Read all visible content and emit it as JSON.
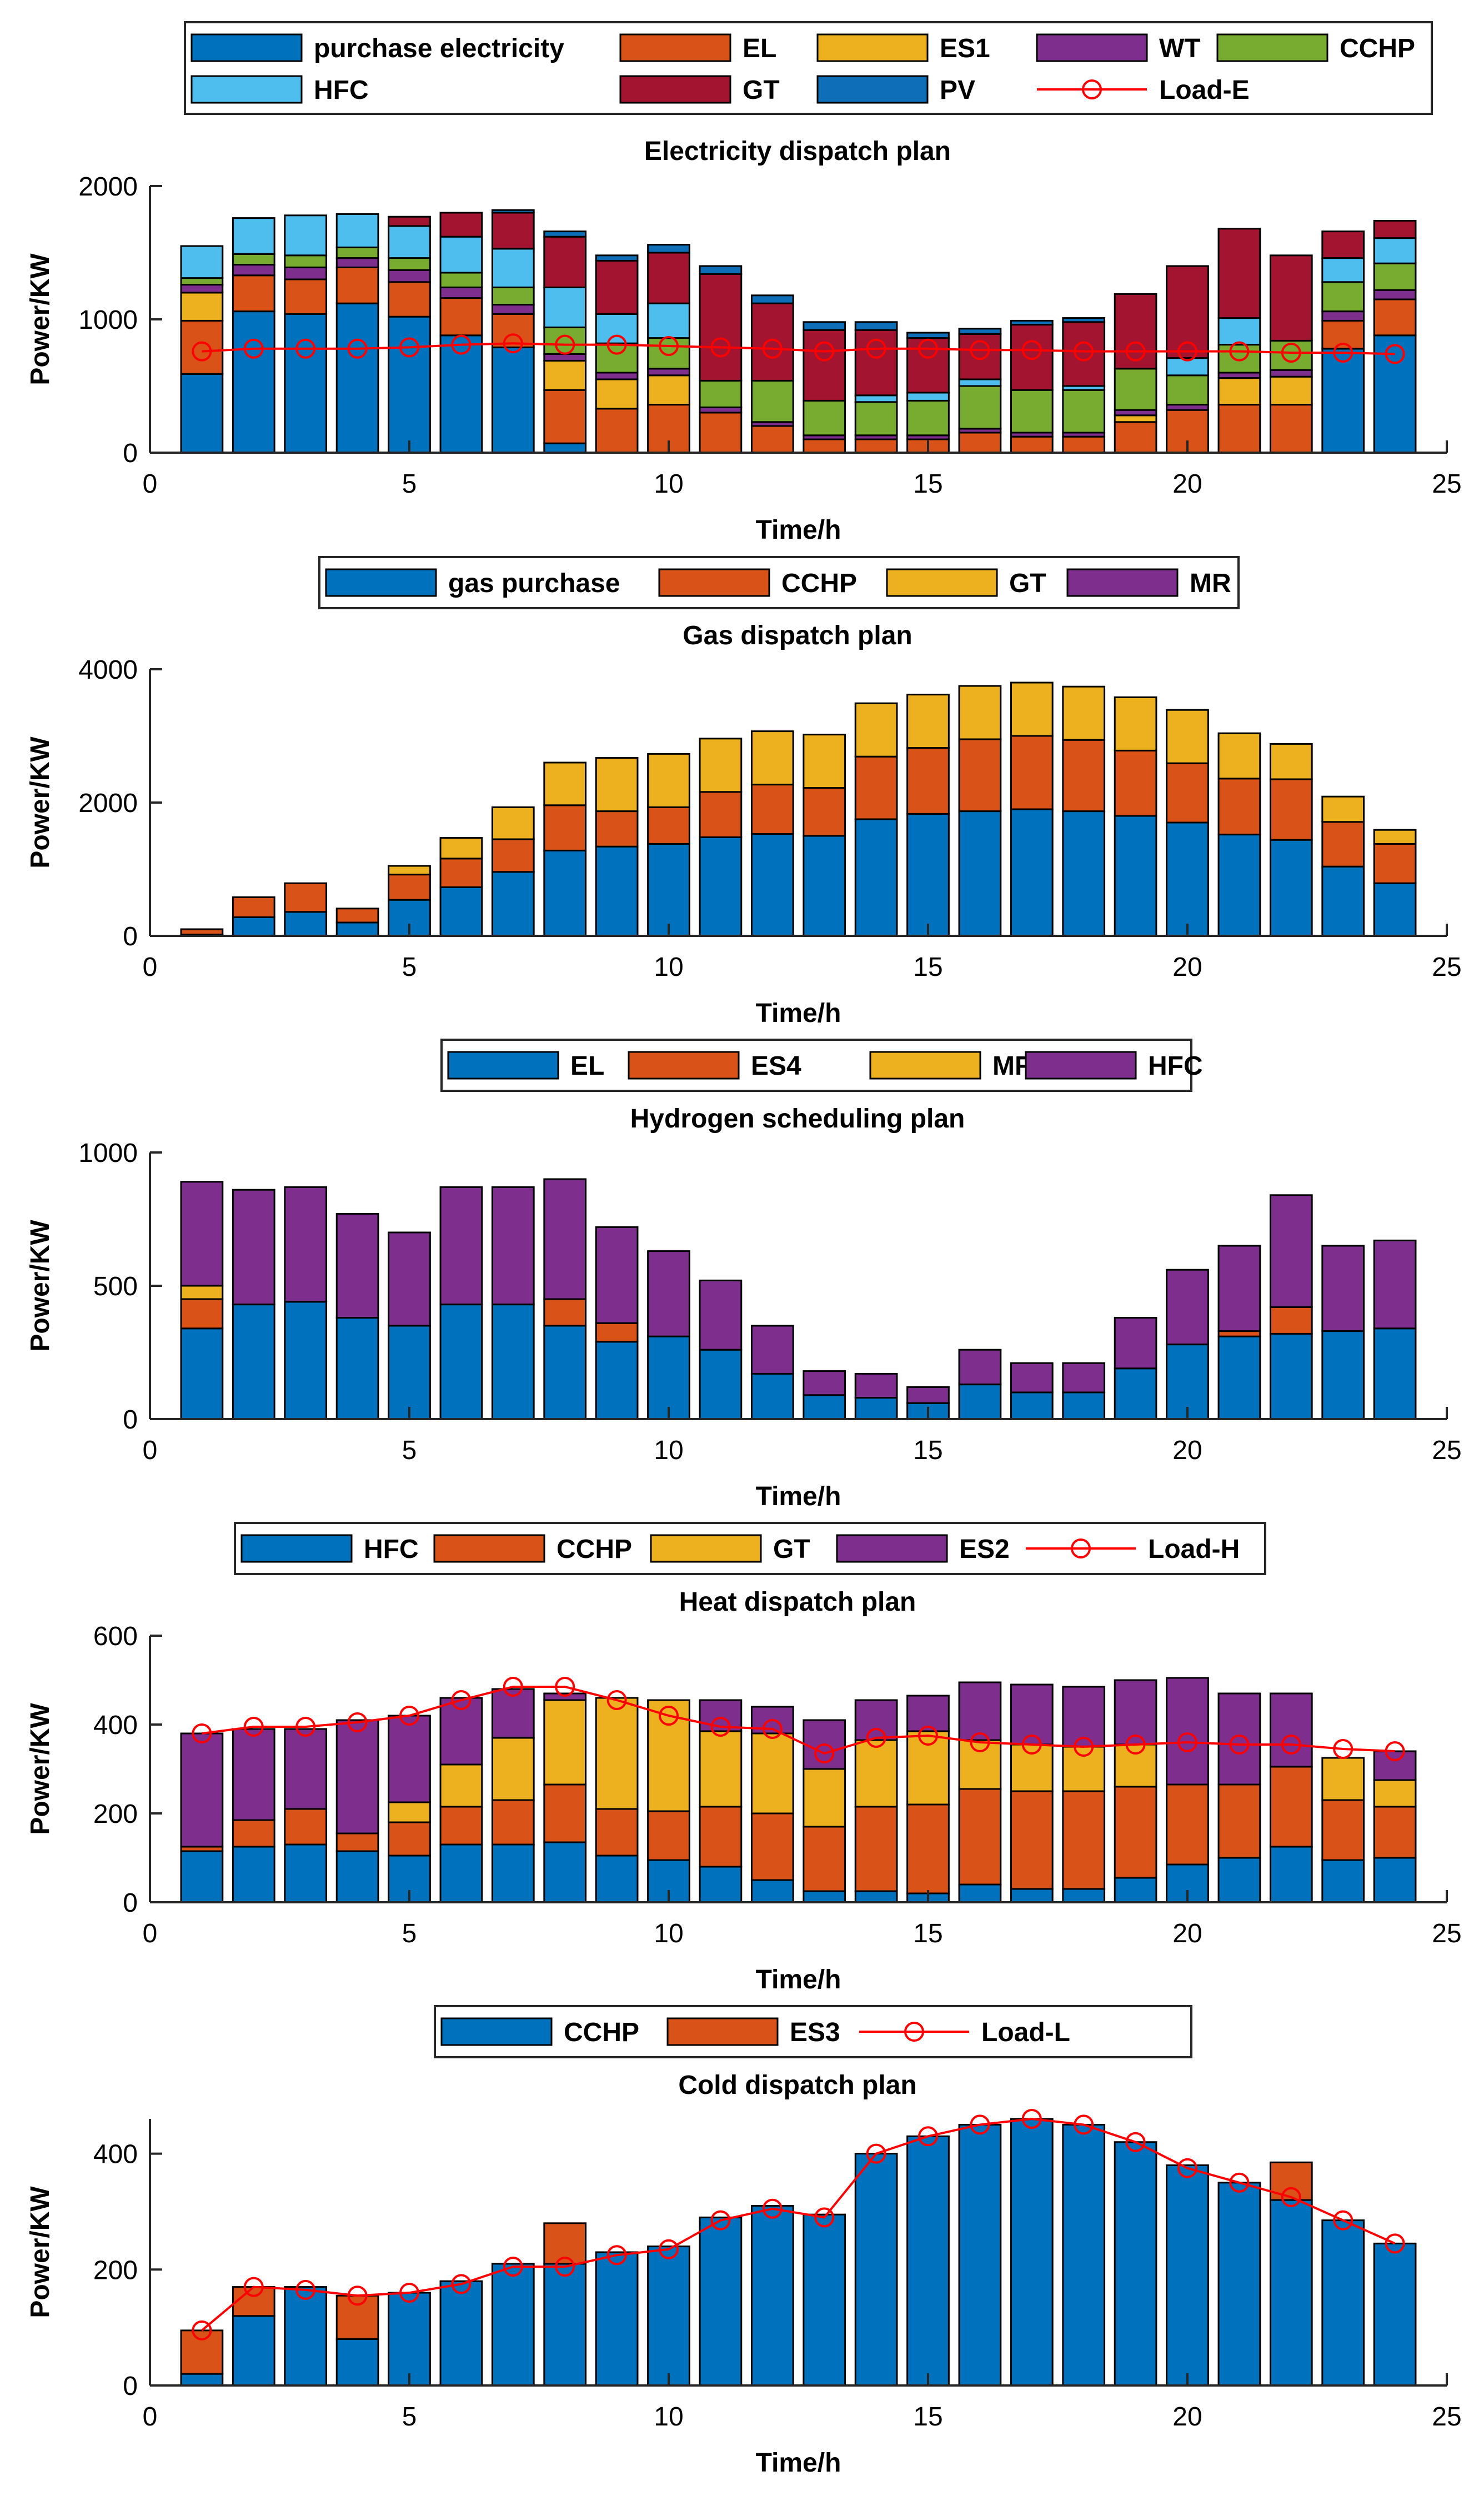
{
  "colors": {
    "blue": "#0072BD",
    "orange": "#D95319",
    "yellow": "#EDB120",
    "purple": "#7E2F8E",
    "green": "#77AC30",
    "cyan": "#4DBEEE",
    "darkred": "#A2142F",
    "pvblue": "#0E6EB8",
    "red": "#FF0000"
  },
  "chart_data": [
    {
      "type": "bar",
      "stacked": true,
      "title": "Electricity dispatch plan",
      "xlabel": "Time/h",
      "ylabel": "Power/KW",
      "xlim": [
        0,
        25
      ],
      "ylim": [
        0,
        2000
      ],
      "xticks": [
        0,
        5,
        10,
        15,
        20,
        25
      ],
      "yticks": [
        0,
        1000,
        2000
      ],
      "legend_position": "top",
      "legend_columns": 5,
      "legend": [
        {
          "name": "purchase electricity",
          "color": "#0072BD",
          "kind": "bar"
        },
        {
          "name": "EL",
          "color": "#D95319",
          "kind": "bar"
        },
        {
          "name": "ES1",
          "color": "#EDB120",
          "kind": "bar"
        },
        {
          "name": "WT",
          "color": "#7E2F8E",
          "kind": "bar"
        },
        {
          "name": "CCHP",
          "color": "#77AC30",
          "kind": "bar"
        },
        {
          "name": "HFC",
          "color": "#4DBEEE",
          "kind": "bar"
        },
        {
          "name": "GT",
          "color": "#A2142F",
          "kind": "bar"
        },
        {
          "name": "PV",
          "color": "#0E6EB8",
          "kind": "bar"
        },
        {
          "name": "Load-E",
          "color": "#FF0000",
          "kind": "line"
        }
      ],
      "x": [
        1,
        2,
        3,
        4,
        5,
        6,
        7,
        8,
        9,
        10,
        11,
        12,
        13,
        14,
        15,
        16,
        17,
        18,
        19,
        20,
        21,
        22,
        23,
        24
      ],
      "series": [
        {
          "name": "purchase electricity",
          "color": "#0072BD",
          "values": [
            590,
            1060,
            1040,
            1120,
            1020,
            880,
            790,
            70,
            0,
            0,
            0,
            0,
            0,
            0,
            0,
            0,
            0,
            0,
            0,
            0,
            0,
            0,
            780,
            880
          ]
        },
        {
          "name": "EL",
          "color": "#D95319",
          "values": [
            400,
            270,
            260,
            270,
            260,
            280,
            250,
            400,
            330,
            360,
            300,
            200,
            100,
            100,
            100,
            150,
            120,
            120,
            230,
            320,
            360,
            360,
            210,
            270
          ]
        },
        {
          "name": "ES1",
          "color": "#EDB120",
          "values": [
            210,
            0,
            0,
            0,
            0,
            0,
            0,
            220,
            220,
            220,
            0,
            0,
            0,
            0,
            0,
            0,
            0,
            0,
            50,
            0,
            200,
            210,
            0,
            0
          ]
        },
        {
          "name": "WT",
          "color": "#7E2F8E",
          "values": [
            60,
            80,
            90,
            70,
            90,
            80,
            70,
            50,
            50,
            50,
            40,
            30,
            30,
            30,
            30,
            30,
            30,
            30,
            40,
            40,
            40,
            50,
            70,
            70
          ]
        },
        {
          "name": "CCHP",
          "color": "#77AC30",
          "values": [
            50,
            80,
            90,
            80,
            90,
            110,
            130,
            200,
            220,
            230,
            200,
            310,
            260,
            250,
            260,
            320,
            320,
            320,
            310,
            220,
            210,
            220,
            220,
            200
          ]
        },
        {
          "name": "HFC",
          "color": "#4DBEEE",
          "values": [
            240,
            270,
            300,
            250,
            240,
            270,
            290,
            300,
            220,
            260,
            0,
            0,
            0,
            50,
            60,
            50,
            0,
            30,
            0,
            130,
            200,
            0,
            180,
            190
          ]
        },
        {
          "name": "GT",
          "color": "#A2142F",
          "values": [
            0,
            0,
            0,
            0,
            70,
            180,
            270,
            380,
            400,
            380,
            800,
            580,
            530,
            490,
            410,
            340,
            490,
            480,
            560,
            690,
            670,
            640,
            200,
            130
          ]
        },
        {
          "name": "PV",
          "color": "#0E6EB8",
          "values": [
            0,
            0,
            0,
            0,
            0,
            0,
            20,
            40,
            40,
            60,
            60,
            60,
            60,
            60,
            40,
            40,
            30,
            30,
            0,
            0,
            0,
            0,
            0,
            0
          ]
        },
        {
          "name": "Load-E",
          "color": "#FF0000",
          "kind": "line",
          "values": [
            760,
            780,
            780,
            780,
            790,
            810,
            820,
            810,
            810,
            800,
            790,
            780,
            760,
            780,
            780,
            770,
            770,
            760,
            760,
            760,
            760,
            750,
            750,
            740
          ]
        }
      ]
    },
    {
      "type": "bar",
      "stacked": true,
      "title": "Gas dispatch plan",
      "xlabel": "Time/h",
      "ylabel": "Power/KW",
      "xlim": [
        0,
        25
      ],
      "ylim": [
        0,
        4000
      ],
      "xticks": [
        0,
        5,
        10,
        15,
        20,
        25
      ],
      "yticks": [
        0,
        2000,
        4000
      ],
      "legend_position": "top",
      "legend_columns": 4,
      "legend": [
        {
          "name": "gas purchase",
          "color": "#0072BD",
          "kind": "bar"
        },
        {
          "name": "CCHP",
          "color": "#D95319",
          "kind": "bar"
        },
        {
          "name": "GT",
          "color": "#EDB120",
          "kind": "bar"
        },
        {
          "name": "MR",
          "color": "#7E2F8E",
          "kind": "bar"
        }
      ],
      "x": [
        1,
        2,
        3,
        4,
        5,
        6,
        7,
        8,
        9,
        10,
        11,
        12,
        13,
        14,
        15,
        16,
        17,
        18,
        19,
        20,
        21,
        22,
        23,
        24
      ],
      "series": [
        {
          "name": "gas purchase",
          "color": "#0072BD",
          "values": [
            20,
            280,
            360,
            200,
            540,
            730,
            960,
            1280,
            1340,
            1380,
            1480,
            1530,
            1500,
            1750,
            1830,
            1870,
            1900,
            1870,
            1800,
            1700,
            1520,
            1440,
            1040,
            790
          ]
        },
        {
          "name": "CCHP",
          "color": "#D95319",
          "values": [
            80,
            300,
            430,
            210,
            380,
            430,
            490,
            680,
            530,
            550,
            680,
            740,
            720,
            940,
            990,
            1080,
            1100,
            1070,
            980,
            890,
            840,
            910,
            670,
            590
          ]
        },
        {
          "name": "GT",
          "color": "#EDB120",
          "values": [
            0,
            0,
            0,
            0,
            130,
            310,
            480,
            640,
            800,
            800,
            800,
            800,
            800,
            800,
            800,
            800,
            800,
            800,
            800,
            800,
            680,
            530,
            380,
            210
          ]
        },
        {
          "name": "MR",
          "color": "#7E2F8E",
          "values": [
            0,
            0,
            0,
            0,
            0,
            0,
            0,
            0,
            0,
            0,
            0,
            0,
            0,
            0,
            0,
            0,
            0,
            0,
            0,
            0,
            0,
            0,
            0,
            0
          ]
        }
      ]
    },
    {
      "type": "bar",
      "stacked": true,
      "title": "Hydrogen scheduling plan",
      "xlabel": "Time/h",
      "ylabel": "Power/KW",
      "xlim": [
        0,
        25
      ],
      "ylim": [
        0,
        1000
      ],
      "xticks": [
        0,
        5,
        10,
        15,
        20,
        25
      ],
      "yticks": [
        0,
        500,
        1000
      ],
      "legend_position": "top",
      "legend_columns": 4,
      "legend": [
        {
          "name": "EL",
          "color": "#0072BD",
          "kind": "bar"
        },
        {
          "name": "ES4",
          "color": "#D95319",
          "kind": "bar"
        },
        {
          "name": "MR",
          "color": "#EDB120",
          "kind": "bar"
        },
        {
          "name": "HFC",
          "color": "#7E2F8E",
          "kind": "bar"
        }
      ],
      "x": [
        1,
        2,
        3,
        4,
        5,
        6,
        7,
        8,
        9,
        10,
        11,
        12,
        13,
        14,
        15,
        16,
        17,
        18,
        19,
        20,
        21,
        22,
        23,
        24
      ],
      "series": [
        {
          "name": "EL",
          "color": "#0072BD",
          "values": [
            340,
            430,
            440,
            380,
            350,
            430,
            430,
            350,
            290,
            310,
            260,
            170,
            90,
            80,
            60,
            130,
            100,
            100,
            190,
            280,
            310,
            320,
            330,
            340
          ]
        },
        {
          "name": "ES4",
          "color": "#D95319",
          "values": [
            110,
            0,
            0,
            0,
            0,
            0,
            0,
            100,
            70,
            0,
            0,
            0,
            0,
            0,
            0,
            0,
            0,
            0,
            0,
            0,
            20,
            100,
            0,
            0
          ]
        },
        {
          "name": "MR",
          "color": "#EDB120",
          "values": [
            50,
            0,
            0,
            0,
            0,
            0,
            0,
            0,
            0,
            0,
            0,
            0,
            0,
            0,
            0,
            0,
            0,
            0,
            0,
            0,
            0,
            0,
            0,
            0
          ]
        },
        {
          "name": "HFC",
          "color": "#7E2F8E",
          "values": [
            390,
            430,
            430,
            390,
            350,
            440,
            440,
            450,
            360,
            320,
            260,
            180,
            90,
            90,
            60,
            130,
            110,
            110,
            190,
            280,
            320,
            420,
            320,
            330
          ]
        }
      ]
    },
    {
      "type": "bar",
      "stacked": true,
      "title": "Heat dispatch plan",
      "xlabel": "Time/h",
      "ylabel": "Power/KW",
      "xlim": [
        0,
        25
      ],
      "ylim": [
        0,
        600
      ],
      "xticks": [
        0,
        5,
        10,
        15,
        20,
        25
      ],
      "yticks": [
        0,
        200,
        400,
        600
      ],
      "legend_position": "top",
      "legend_columns": 5,
      "legend": [
        {
          "name": "HFC",
          "color": "#0072BD",
          "kind": "bar"
        },
        {
          "name": "CCHP",
          "color": "#D95319",
          "kind": "bar"
        },
        {
          "name": "GT",
          "color": "#EDB120",
          "kind": "bar"
        },
        {
          "name": "ES2",
          "color": "#7E2F8E",
          "kind": "bar"
        },
        {
          "name": "Load-H",
          "color": "#FF0000",
          "kind": "line"
        }
      ],
      "x": [
        1,
        2,
        3,
        4,
        5,
        6,
        7,
        8,
        9,
        10,
        11,
        12,
        13,
        14,
        15,
        16,
        17,
        18,
        19,
        20,
        21,
        22,
        23,
        24
      ],
      "series": [
        {
          "name": "HFC",
          "color": "#0072BD",
          "values": [
            115,
            125,
            130,
            115,
            105,
            130,
            130,
            135,
            105,
            95,
            80,
            50,
            25,
            25,
            20,
            40,
            30,
            30,
            55,
            85,
            100,
            125,
            95,
            100
          ]
        },
        {
          "name": "CCHP",
          "color": "#D95319",
          "values": [
            10,
            60,
            80,
            40,
            75,
            85,
            100,
            130,
            105,
            110,
            135,
            150,
            145,
            190,
            200,
            215,
            220,
            220,
            205,
            180,
            165,
            180,
            135,
            115
          ]
        },
        {
          "name": "GT",
          "color": "#EDB120",
          "values": [
            0,
            0,
            0,
            0,
            45,
            95,
            140,
            190,
            250,
            250,
            170,
            180,
            130,
            150,
            165,
            110,
            105,
            100,
            95,
            0,
            0,
            0,
            95,
            60
          ]
        },
        {
          "name": "ES2",
          "color": "#7E2F8E",
          "values": [
            255,
            205,
            180,
            255,
            195,
            150,
            110,
            15,
            0,
            0,
            70,
            60,
            110,
            90,
            80,
            130,
            135,
            135,
            145,
            240,
            205,
            165,
            0,
            65
          ]
        },
        {
          "name": "Load-H",
          "color": "#FF0000",
          "kind": "line",
          "values": [
            380,
            395,
            395,
            405,
            420,
            455,
            485,
            485,
            455,
            420,
            395,
            390,
            335,
            370,
            375,
            360,
            355,
            350,
            355,
            360,
            355,
            355,
            345,
            340
          ]
        }
      ]
    },
    {
      "type": "bar",
      "stacked": true,
      "title": "Cold dispatch plan",
      "xlabel": "Time/h",
      "ylabel": "Power/KW",
      "xlim": [
        0,
        25
      ],
      "ylim": [
        0,
        460
      ],
      "xticks": [
        0,
        5,
        10,
        15,
        20,
        25
      ],
      "yticks": [
        0,
        200,
        400
      ],
      "legend_position": "top",
      "legend_columns": 3,
      "legend": [
        {
          "name": "CCHP",
          "color": "#0072BD",
          "kind": "bar"
        },
        {
          "name": "ES3",
          "color": "#D95319",
          "kind": "bar"
        },
        {
          "name": "Load-L",
          "color": "#FF0000",
          "kind": "line"
        }
      ],
      "x": [
        1,
        2,
        3,
        4,
        5,
        6,
        7,
        8,
        9,
        10,
        11,
        12,
        13,
        14,
        15,
        16,
        17,
        18,
        19,
        20,
        21,
        22,
        23,
        24
      ],
      "series": [
        {
          "name": "CCHP",
          "color": "#0072BD",
          "values": [
            20,
            120,
            170,
            80,
            160,
            180,
            210,
            210,
            230,
            240,
            290,
            310,
            295,
            400,
            430,
            450,
            460,
            450,
            420,
            380,
            350,
            320,
            285,
            245
          ]
        },
        {
          "name": "ES3",
          "color": "#D95319",
          "values": [
            75,
            50,
            0,
            75,
            0,
            0,
            0,
            70,
            0,
            0,
            0,
            0,
            0,
            0,
            0,
            0,
            0,
            0,
            0,
            0,
            0,
            65,
            0,
            0
          ]
        },
        {
          "name": "Load-L",
          "color": "#FF0000",
          "kind": "line",
          "values": [
            95,
            170,
            165,
            155,
            160,
            175,
            205,
            205,
            225,
            235,
            285,
            305,
            290,
            400,
            430,
            450,
            460,
            450,
            420,
            375,
            350,
            325,
            285,
            245
          ]
        }
      ]
    }
  ]
}
